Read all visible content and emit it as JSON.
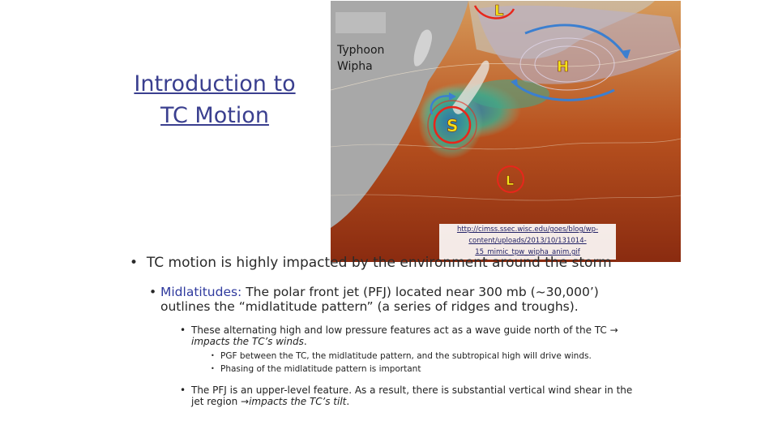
{
  "title_lines": [
    "Introduction to",
    "TC Motion"
  ],
  "map": {
    "label_lines": [
      "Typhoon",
      "Wipha"
    ],
    "markers": {
      "low_top": "L",
      "high": "H",
      "storm": "S",
      "low_bottom": "L"
    },
    "source_lines": [
      "http://cimss.ssec.wisc.edu/goes/blog/wp-",
      "content/uploads/2013/10/131014-",
      "15_mimic_tpw_wipha_anim.gif"
    ],
    "colors": {
      "ocean_dark": "#7a1f0c",
      "ocean_mid": "#c4622a",
      "ocean_light": "#e2a865",
      "land": "#a9a9a9",
      "moist_green": "#3fa88a",
      "moist_blue": "#2b5fa8",
      "arrow_blue": "#3b7fd0",
      "arrow_red": "#e8261b"
    }
  },
  "bullets": {
    "b1": "TC motion is highly impacted by the environment around the storm",
    "b2_head": "Midlatitudes:",
    "b2_text": " The polar front jet (PFJ) located near 300 mb (~30,000’) outlines the “midlatitude pattern” (a series of ridges and troughs).",
    "b3_text": "These alternating high and low pressure features act as a wave guide north of the TC",
    "b3_arrow": "→",
    "b3_italic": "impacts the TC’s winds",
    "b3_end": ".",
    "b4_items": [
      "PGF between the TC, the midlatitude pattern, and the subtropical high will drive winds.",
      "Phasing of the midlatitude pattern is important"
    ],
    "b5_text": "The PFJ is an upper-level feature. As a result, there is substantial vertical wind shear in the jet region",
    "b5_arrow": "→",
    "b5_italic": "impacts the TC’s tilt",
    "b5_end": "."
  }
}
